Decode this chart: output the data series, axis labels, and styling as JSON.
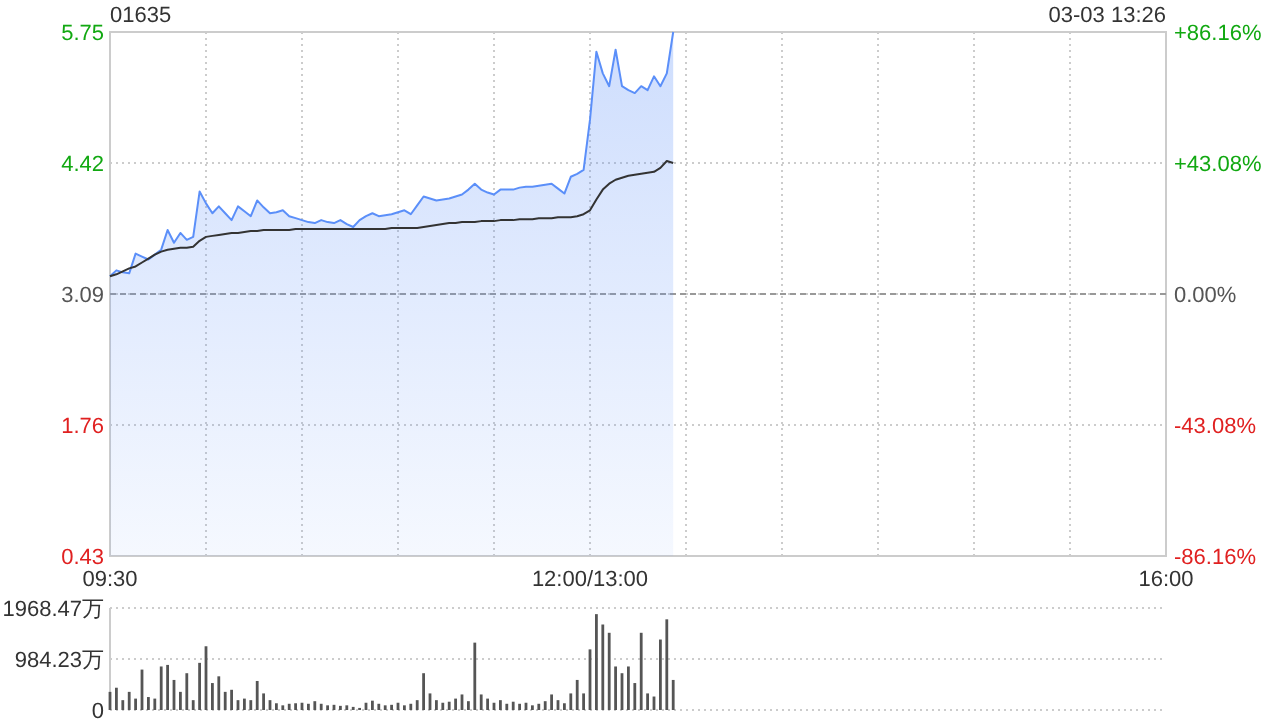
{
  "chart_data": [
    {
      "type": "line",
      "title": "01635",
      "annotations": [
        "03-03 13:26"
      ],
      "categories": [
        "09:30",
        null,
        null,
        null,
        null,
        null,
        null,
        null,
        null,
        null,
        null,
        null,
        null,
        null,
        null,
        null,
        null,
        null,
        null,
        null,
        null,
        null,
        null,
        null,
        null,
        null,
        null,
        null,
        null,
        null,
        null,
        null,
        null,
        null,
        null,
        null,
        null,
        null,
        null,
        null,
        null,
        null,
        null,
        null,
        null,
        null,
        null,
        null,
        null,
        null,
        null,
        null,
        null,
        null,
        null,
        null,
        null,
        null,
        null,
        null,
        null,
        null,
        null,
        null,
        null,
        null,
        null,
        null,
        null,
        null,
        null,
        null,
        null,
        null,
        null,
        "12:00/13:00",
        null,
        null,
        null,
        null,
        null,
        null,
        null,
        null,
        null,
        null,
        null,
        null,
        null,
        null,
        null,
        null,
        null,
        null,
        null,
        null,
        null,
        null,
        null,
        null,
        null,
        null,
        null,
        null,
        null,
        null,
        null,
        null,
        null,
        null,
        null,
        null,
        null,
        null,
        null,
        null,
        null,
        null,
        null,
        null,
        null,
        null,
        null,
        null,
        null,
        null,
        null,
        null,
        null,
        null,
        null,
        null,
        null,
        null,
        null,
        null,
        null,
        null,
        null,
        null,
        null,
        null,
        null,
        null,
        null,
        null,
        null,
        null,
        null,
        null,
        null,
        null,
        null,
        null,
        null,
        null,
        null,
        null,
        null,
        null,
        null,
        null,
        null,
        null,
        null,
        "16:00"
      ],
      "ylim": [
        0.43,
        5.75
      ],
      "yticks": [
        0.43,
        1.76,
        3.09,
        4.42,
        5.75
      ],
      "y2lim": [
        -86.16,
        86.16
      ],
      "y2ticks": [
        {
          "value": -86.16,
          "label": "-86.16%"
        },
        {
          "value": -43.08,
          "label": "-43.08%"
        },
        {
          "value": 0,
          "label": "0.00%"
        },
        {
          "value": 43.08,
          "label": "+43.08%"
        },
        {
          "value": 86.16,
          "label": "+86.16%"
        }
      ],
      "grid": true,
      "ref_lines": [
        {
          "axis": "y",
          "value": 3.09,
          "color": "#999999",
          "line_style": "dashed"
        }
      ],
      "series": [
        {
          "type": "area",
          "color": "#5b8ff9",
          "values": [
            3.27,
            3.33,
            3.31,
            3.3,
            3.5,
            3.47,
            3.44,
            3.49,
            3.54,
            3.74,
            3.61,
            3.71,
            3.64,
            3.67,
            4.13,
            4.01,
            3.91,
            3.98,
            3.91,
            3.84,
            3.98,
            3.93,
            3.88,
            4.04,
            3.97,
            3.91,
            3.92,
            3.94,
            3.88,
            3.86,
            3.84,
            3.82,
            3.81,
            3.84,
            3.82,
            3.81,
            3.84,
            3.8,
            3.77,
            3.84,
            3.88,
            3.91,
            3.88,
            3.89,
            3.9,
            3.92,
            3.94,
            3.9,
            3.99,
            4.08,
            4.06,
            4.04,
            4.05,
            4.06,
            4.08,
            4.1,
            4.15,
            4.21,
            4.15,
            4.12,
            4.1,
            4.15,
            4.15,
            4.15,
            4.17,
            4.18,
            4.18,
            4.19,
            4.2,
            4.21,
            4.16,
            4.11,
            4.28,
            4.31,
            4.35,
            4.86,
            5.55,
            5.33,
            5.2,
            5.57,
            5.2,
            5.16,
            5.13,
            5.2,
            5.16,
            5.3,
            5.2,
            5.33,
            5.75,
            null,
            null,
            null,
            null,
            null,
            null,
            null,
            null,
            null,
            null,
            null,
            null,
            null,
            null,
            null,
            null,
            null,
            null,
            null,
            null,
            null,
            null,
            null,
            null,
            null,
            null,
            null,
            null,
            null,
            null,
            null,
            null,
            null,
            null,
            null,
            null,
            null,
            null,
            null,
            null,
            null,
            null,
            null,
            null,
            null,
            null,
            null,
            null,
            null,
            null,
            null,
            null,
            null,
            null,
            null,
            null,
            null,
            null,
            null,
            null,
            null,
            null,
            null,
            null,
            null,
            null,
            null,
            null,
            null,
            null,
            null,
            null,
            null,
            null,
            null,
            null,
            null
          ]
        },
        {
          "color": "#333333",
          "values": [
            3.27,
            3.29,
            3.32,
            3.35,
            3.37,
            3.41,
            3.45,
            3.49,
            3.52,
            3.54,
            3.55,
            3.56,
            3.56,
            3.57,
            3.63,
            3.67,
            3.68,
            3.69,
            3.7,
            3.71,
            3.71,
            3.72,
            3.73,
            3.73,
            3.74,
            3.74,
            3.74,
            3.74,
            3.74,
            3.75,
            3.75,
            3.75,
            3.75,
            3.75,
            3.75,
            3.75,
            3.75,
            3.75,
            3.75,
            3.75,
            3.75,
            3.75,
            3.75,
            3.75,
            3.76,
            3.76,
            3.76,
            3.76,
            3.76,
            3.77,
            3.78,
            3.79,
            3.8,
            3.81,
            3.81,
            3.82,
            3.82,
            3.82,
            3.83,
            3.83,
            3.83,
            3.84,
            3.84,
            3.84,
            3.85,
            3.85,
            3.85,
            3.86,
            3.86,
            3.86,
            3.87,
            3.87,
            3.87,
            3.88,
            3.9,
            3.94,
            4.05,
            4.15,
            4.21,
            4.25,
            4.27,
            4.29,
            4.3,
            4.31,
            4.32,
            4.33,
            4.37,
            4.44,
            4.42,
            null,
            null,
            null,
            null,
            null,
            null,
            null,
            null,
            null,
            null,
            null,
            null,
            null,
            null,
            null,
            null,
            null,
            null,
            null,
            null,
            null,
            null,
            null,
            null,
            null,
            null,
            null,
            null,
            null,
            null,
            null,
            null,
            null,
            null,
            null,
            null,
            null,
            null,
            null,
            null,
            null,
            null,
            null,
            null,
            null,
            null,
            null,
            null,
            null,
            null,
            null,
            null,
            null,
            null,
            null,
            null,
            null,
            null,
            null,
            null,
            null,
            null,
            null,
            null,
            null,
            null,
            null,
            null,
            null,
            null,
            null,
            null,
            null,
            null,
            null,
            null,
            null
          ]
        }
      ]
    },
    {
      "type": "bar",
      "color": "#555555",
      "ylim": [
        0,
        1968.47
      ],
      "yticks": [
        0,
        {
          "value": 984.23,
          "label": "984.23万"
        },
        {
          "value": 1968.47,
          "label": "1968.47万"
        }
      ],
      "grid": "y",
      "tick_labels": "y",
      "categories": [
        null,
        null,
        null,
        null,
        null,
        null,
        null,
        null,
        null,
        null,
        null,
        null,
        null,
        null,
        null,
        null,
        null,
        null,
        null,
        null,
        null,
        null,
        null,
        null,
        null,
        null,
        null,
        null,
        null,
        null,
        null,
        null,
        null,
        null,
        null,
        null,
        null,
        null,
        null,
        null,
        null,
        null,
        null,
        null,
        null,
        null,
        null,
        null,
        null,
        null,
        null,
        null,
        null,
        null,
        null,
        null,
        null,
        null,
        null,
        null,
        null,
        null,
        null,
        null,
        null,
        null,
        null,
        null,
        null,
        null,
        null,
        null,
        null,
        null,
        null,
        null,
        null,
        null,
        null,
        null,
        null,
        null,
        null,
        null,
        null,
        null,
        null,
        null,
        null,
        null,
        null,
        null,
        null,
        null,
        null,
        null,
        null,
        null,
        null,
        null,
        null,
        null,
        null,
        null,
        null,
        null,
        null,
        null,
        null,
        null,
        null,
        null,
        null,
        null,
        null,
        null,
        null,
        null,
        null,
        null,
        null,
        null,
        null,
        null,
        null,
        null,
        null,
        null,
        null,
        null,
        null,
        null,
        null,
        null,
        null,
        null,
        null,
        null,
        null,
        null,
        null,
        null,
        null,
        null,
        null,
        null,
        null,
        null,
        null,
        null,
        null,
        null,
        null,
        null,
        null,
        null,
        null,
        null,
        null,
        null,
        null,
        null,
        null,
        null,
        null,
        null
      ],
      "values": [
        350,
        430,
        190,
        350,
        220,
        780,
        250,
        220,
        840,
        870,
        580,
        350,
        710,
        190,
        910,
        1230,
        520,
        650,
        350,
        390,
        190,
        220,
        190,
        560,
        320,
        190,
        130,
        90,
        120,
        130,
        140,
        120,
        170,
        120,
        90,
        100,
        80,
        90,
        60,
        40,
        140,
        180,
        120,
        90,
        100,
        140,
        90,
        120,
        190,
        710,
        320,
        190,
        140,
        160,
        220,
        300,
        170,
        1300,
        300,
        220,
        140,
        190,
        120,
        160,
        120,
        140,
        90,
        120,
        170,
        300,
        190,
        130,
        320,
        580,
        320,
        1170,
        1850,
        1650,
        1490,
        840,
        710,
        840,
        520,
        1490,
        320,
        260,
        1360,
        1750,
        580,
        null,
        null,
        null,
        null,
        null,
        null,
        null,
        null,
        null,
        null,
        null,
        null,
        null,
        null,
        null,
        null,
        null,
        null,
        null,
        null,
        null,
        null,
        null,
        null,
        null,
        null,
        null,
        null,
        null,
        null,
        null,
        null,
        null,
        null,
        null,
        null,
        null,
        null,
        null,
        null,
        null,
        null,
        null,
        null,
        null,
        null,
        null,
        null,
        null,
        null,
        null,
        null,
        null,
        null,
        null,
        null,
        null,
        null,
        null,
        null,
        null,
        null,
        null,
        null,
        null,
        null,
        null,
        null,
        null,
        null,
        null,
        null,
        null,
        null,
        null,
        null,
        null
      ]
    }
  ]
}
